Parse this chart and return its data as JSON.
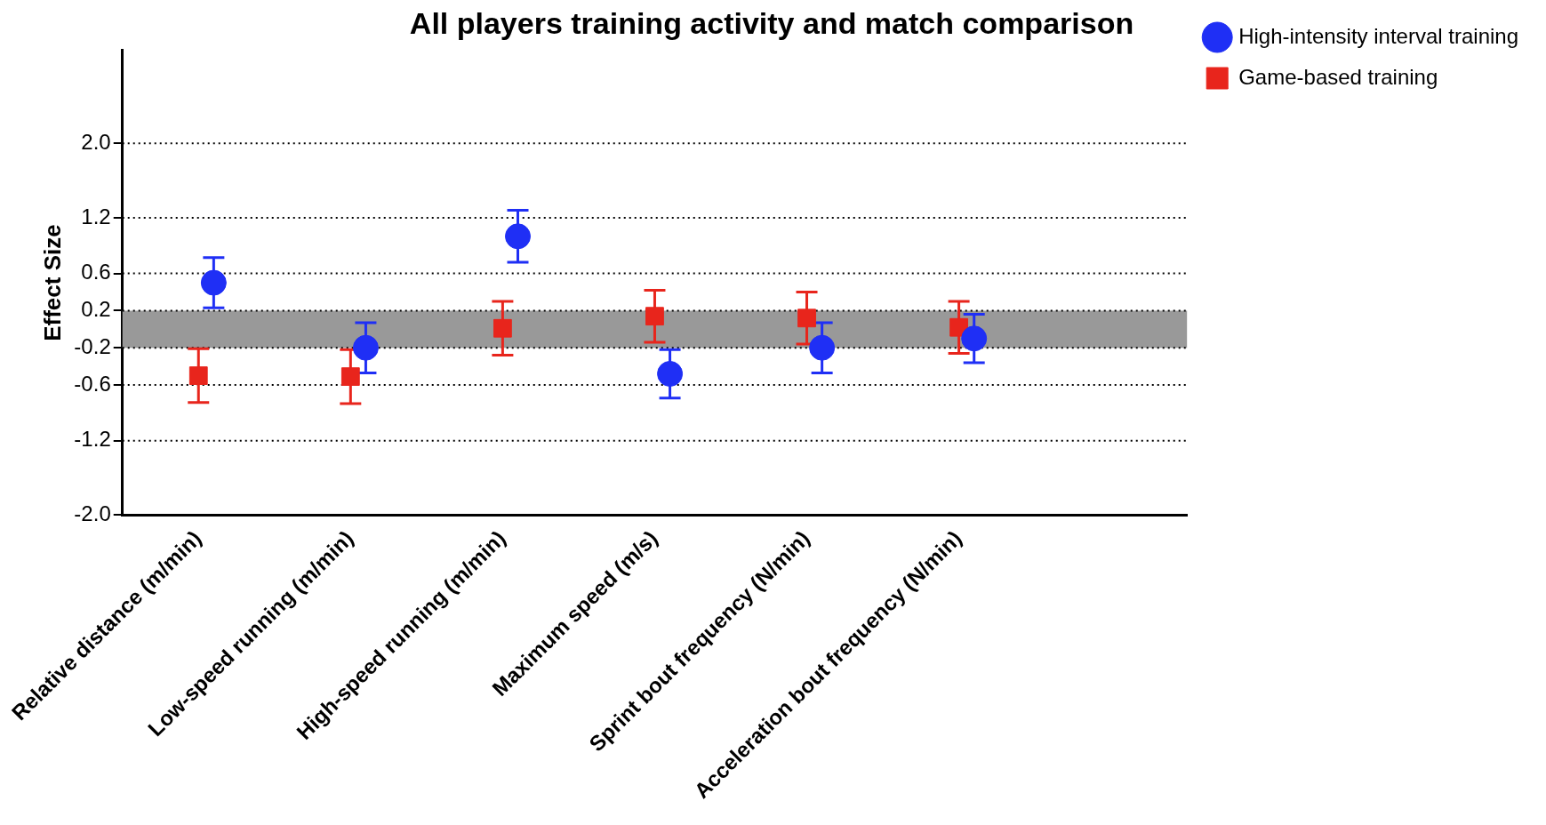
{
  "chart_data": {
    "type": "scatter",
    "title": "All players training activity and match comparison",
    "ylabel": "Effect Size",
    "categories": [
      "Relative distance (m/min)",
      "Low-speed running (m/min)",
      "High-speed running (m/min)",
      "Maximum speed (m/s)",
      "Sprint bout frequency (N/min)",
      "Acceleration bout frequency (N/min)"
    ],
    "series": [
      {
        "name": "High-intensity interval training",
        "color": "#1f2ff5",
        "marker": "circle",
        "values": [
          0.5,
          -0.2,
          1.0,
          -0.48,
          -0.2,
          -0.1
        ],
        "errors": [
          0.27,
          0.27,
          0.28,
          0.26,
          0.27,
          0.26
        ]
      },
      {
        "name": "Game-based training",
        "color": "#e8251c",
        "marker": "square",
        "values": [
          -0.5,
          -0.51,
          0.01,
          0.14,
          0.12,
          0.02
        ],
        "errors": [
          0.29,
          0.29,
          0.29,
          0.28,
          0.28,
          0.28
        ]
      }
    ],
    "ylim": [
      -2,
      3
    ],
    "yticks": [
      {
        "value": -2,
        "label": "-2.0"
      },
      -1.2,
      -0.6,
      -0.2,
      0.2,
      0.6,
      1.2,
      {
        "value": 2,
        "label": "2.0"
      }
    ],
    "bands": [
      {
        "axis": "y",
        "from": -0.2,
        "to": 0.2,
        "color": "#999999"
      }
    ],
    "grid": "y",
    "line_style": "dotted",
    "legend": "top right"
  }
}
